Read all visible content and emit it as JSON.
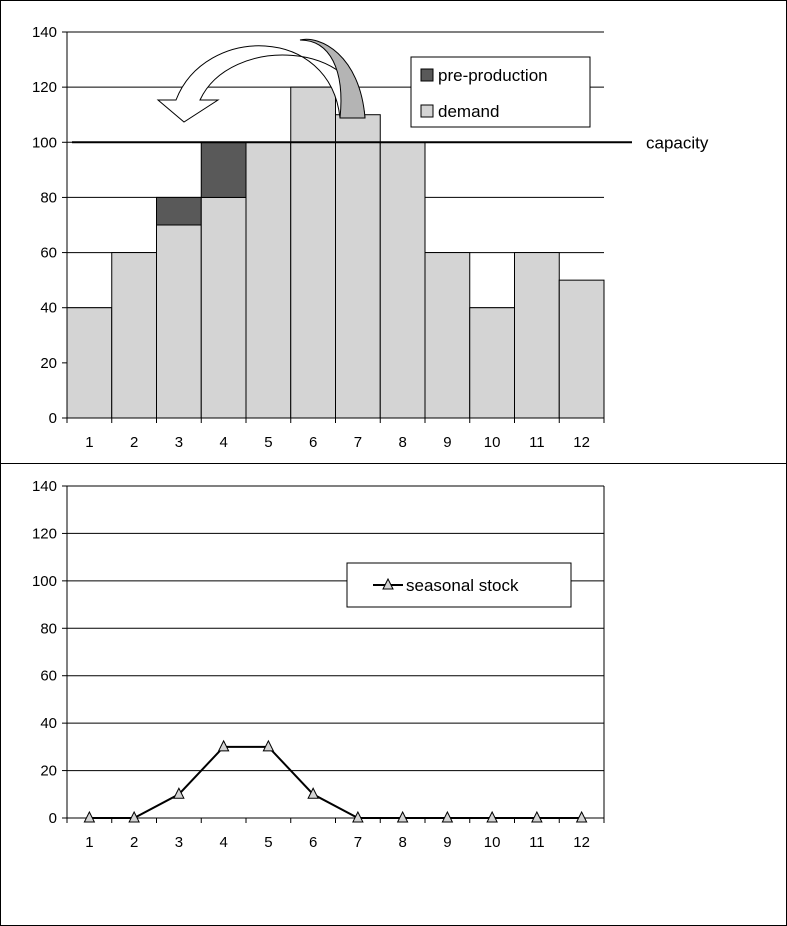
{
  "chart_data": [
    {
      "type": "bar",
      "stacked": true,
      "categories": [
        "1",
        "2",
        "3",
        "4",
        "5",
        "6",
        "7",
        "8",
        "9",
        "10",
        "11",
        "12"
      ],
      "series": [
        {
          "name": "demand",
          "values": [
            40,
            60,
            70,
            80,
            100,
            120,
            110,
            100,
            60,
            40,
            60,
            50
          ],
          "color": "#d4d4d4"
        },
        {
          "name": "pre-production",
          "values": [
            0,
            0,
            10,
            20,
            0,
            0,
            0,
            0,
            0,
            0,
            0,
            0
          ],
          "color": "#595959"
        }
      ],
      "legend_order": [
        "pre-production",
        "demand"
      ],
      "legend_position": "top-right",
      "reference_line": {
        "label": "capacity",
        "value": 100
      },
      "annotation": "curved arrow from periods 6-7 back to periods 3-4",
      "ylim": [
        0,
        140
      ],
      "yticks": [
        0,
        20,
        40,
        60,
        80,
        100,
        120,
        140
      ],
      "grid": true
    },
    {
      "type": "line",
      "x": [
        "1",
        "2",
        "3",
        "4",
        "5",
        "6",
        "7",
        "8",
        "9",
        "10",
        "11",
        "12"
      ],
      "series": [
        {
          "name": "seasonal stock",
          "values": [
            0,
            0,
            10,
            30,
            30,
            10,
            0,
            0,
            0,
            0,
            0,
            0
          ],
          "marker": "triangle"
        }
      ],
      "legend_position": "right",
      "ylim": [
        0,
        140
      ],
      "yticks": [
        0,
        20,
        40,
        60,
        80,
        100,
        120,
        140
      ],
      "grid": true
    }
  ]
}
